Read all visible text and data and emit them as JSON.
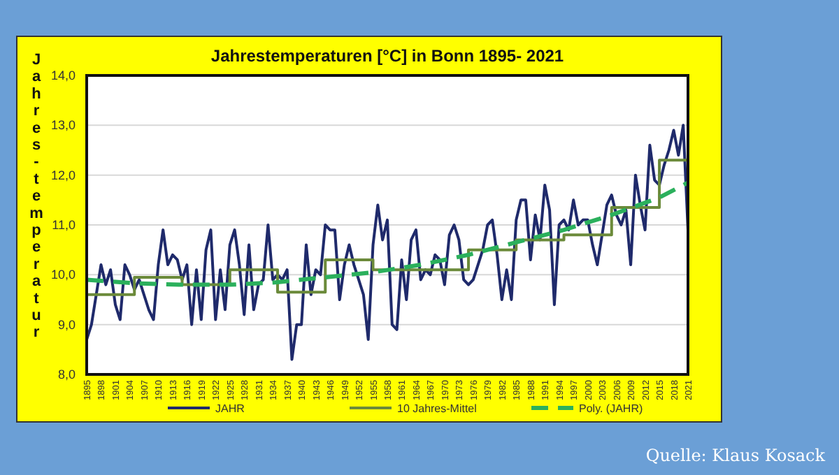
{
  "chart_data": {
    "type": "line",
    "title": "Jahrestemperaturen [°C] in Bonn 1895- 2021",
    "ylabel": "Jahres-temperatur",
    "annotations": [
      "Quelle: Klaus Kosack"
    ],
    "xlim": [
      1895,
      2021
    ],
    "xticks": [
      1895,
      1898,
      1901,
      1904,
      1907,
      1910,
      1913,
      1916,
      1919,
      1922,
      1925,
      1928,
      1931,
      1934,
      1937,
      1940,
      1943,
      1946,
      1949,
      1952,
      1955,
      1958,
      1961,
      1964,
      1967,
      1970,
      1973,
      1976,
      1979,
      1982,
      1985,
      1988,
      1991,
      1994,
      1997,
      2000,
      2003,
      2006,
      2009,
      2012,
      2015,
      2018,
      2021
    ],
    "ylim": [
      8,
      14
    ],
    "yticks": [
      {
        "value": 8,
        "label": "8,0"
      },
      {
        "value": 9,
        "label": "9,0"
      },
      {
        "value": 10,
        "label": "10,0"
      },
      {
        "value": 11,
        "label": "11,0"
      },
      {
        "value": 12,
        "label": "12,0"
      },
      {
        "value": 13,
        "label": "13,0"
      },
      {
        "value": 14,
        "label": "14,0"
      }
    ],
    "grid": "y",
    "legend": "bottom",
    "series": [
      {
        "name": "JAHR",
        "color": "#1f2a6b",
        "line_style": "solid",
        "x": [
          1895,
          1896,
          1897,
          1898,
          1899,
          1900,
          1901,
          1902,
          1903,
          1904,
          1905,
          1906,
          1907,
          1908,
          1909,
          1910,
          1911,
          1912,
          1913,
          1914,
          1915,
          1916,
          1917,
          1918,
          1919,
          1920,
          1921,
          1922,
          1923,
          1924,
          1925,
          1926,
          1927,
          1928,
          1929,
          1930,
          1931,
          1932,
          1933,
          1934,
          1935,
          1936,
          1937,
          1938,
          1939,
          1940,
          1941,
          1942,
          1943,
          1944,
          1945,
          1946,
          1947,
          1948,
          1949,
          1950,
          1951,
          1952,
          1953,
          1954,
          1955,
          1956,
          1957,
          1958,
          1959,
          1960,
          1961,
          1962,
          1963,
          1964,
          1965,
          1966,
          1967,
          1968,
          1969,
          1970,
          1971,
          1972,
          1973,
          1974,
          1975,
          1976,
          1977,
          1978,
          1979,
          1980,
          1981,
          1982,
          1983,
          1984,
          1985,
          1986,
          1987,
          1988,
          1989,
          1990,
          1991,
          1992,
          1993,
          1994,
          1995,
          1996,
          1997,
          1998,
          1999,
          2000,
          2001,
          2002,
          2003,
          2004,
          2005,
          2006,
          2007,
          2008,
          2009,
          2010,
          2011,
          2012,
          2013,
          2014,
          2015,
          2016,
          2017,
          2018,
          2019,
          2020,
          2021
        ],
        "values": [
          8.7,
          9.0,
          9.6,
          10.2,
          9.8,
          10.1,
          9.4,
          9.1,
          10.2,
          10.0,
          9.7,
          9.9,
          9.6,
          9.3,
          9.1,
          10.2,
          10.9,
          10.2,
          10.4,
          10.3,
          9.9,
          10.2,
          9.0,
          10.1,
          9.1,
          10.5,
          10.9,
          9.1,
          10.1,
          9.3,
          10.6,
          10.9,
          10.2,
          9.2,
          10.6,
          9.3,
          9.8,
          9.9,
          11.0,
          9.9,
          10.0,
          9.9,
          10.1,
          8.3,
          9.0,
          9.0,
          10.6,
          9.6,
          10.1,
          10.0,
          11.0,
          10.9,
          10.9,
          9.5,
          10.2,
          10.6,
          10.2,
          9.9,
          9.6,
          8.7,
          10.6,
          11.4,
          10.7,
          11.1,
          9.0,
          8.9,
          10.3,
          9.5,
          10.7,
          10.9,
          9.9,
          10.1,
          10.0,
          10.4,
          10.3,
          9.8,
          10.8,
          11.0,
          10.7,
          9.9,
          9.8,
          9.9,
          10.2,
          10.5,
          11.0,
          11.1,
          10.4,
          9.5,
          10.1,
          9.5,
          11.1,
          11.5,
          11.5,
          10.3,
          11.2,
          10.7,
          11.8,
          11.3,
          9.4,
          11.0,
          11.1,
          10.9,
          11.5,
          11.0,
          11.1,
          11.1,
          10.6,
          10.2,
          10.8,
          11.4,
          11.6,
          11.2,
          11.0,
          11.3,
          10.2,
          12.0,
          11.4,
          10.9,
          12.6,
          11.9,
          11.8,
          12.2,
          12.5,
          12.9,
          12.4,
          13.0,
          10.9
        ]
      },
      {
        "name": "10 Jahres-Mittel",
        "color": "#6b8a3a",
        "type": "step",
        "line_style": "solid",
        "x": [
          1895,
          1905,
          1915,
          1925,
          1935,
          1945,
          1955,
          1965,
          1975,
          1985,
          1995,
          2005,
          2015,
          2021
        ],
        "values": [
          9.6,
          9.95,
          9.8,
          10.1,
          9.65,
          10.3,
          10.1,
          10.1,
          10.5,
          10.7,
          10.8,
          11.35,
          12.3,
          12.3
        ]
      },
      {
        "name": "Poly. (JAHR)",
        "color": "#2bb05c",
        "line_style": "dashed",
        "x": [
          1895,
          1905,
          1915,
          1925,
          1935,
          1945,
          1955,
          1965,
          1975,
          1985,
          1995,
          2005,
          2015,
          2021
        ],
        "values": [
          9.9,
          9.83,
          9.8,
          9.8,
          9.85,
          9.95,
          10.05,
          10.2,
          10.4,
          10.65,
          10.9,
          11.2,
          11.55,
          11.85
        ]
      }
    ]
  }
}
